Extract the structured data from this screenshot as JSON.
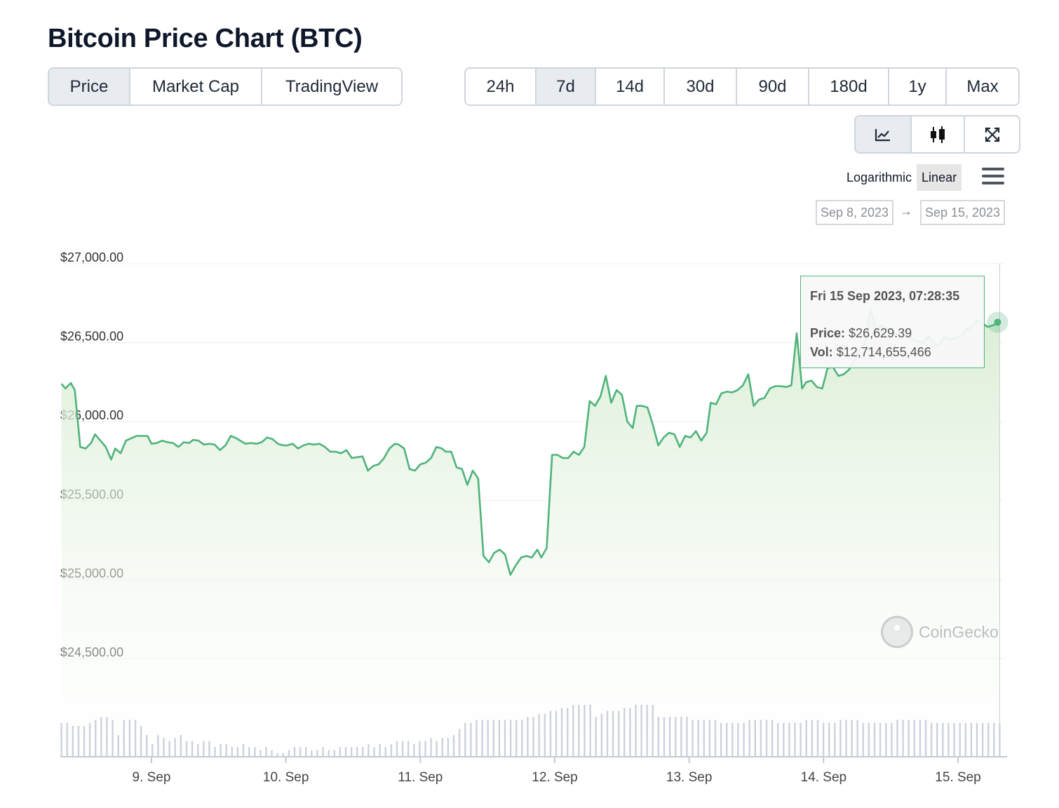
{
  "page": {
    "title": "Bitcoin Price Chart (BTC)"
  },
  "view_tabs": [
    {
      "label": "Price",
      "active": true
    },
    {
      "label": "Market Cap",
      "active": false
    },
    {
      "label": "TradingView",
      "active": false
    }
  ],
  "range_tabs": [
    {
      "label": "24h",
      "active": false
    },
    {
      "label": "7d",
      "active": true
    },
    {
      "label": "14d",
      "active": false
    },
    {
      "label": "30d",
      "active": false
    },
    {
      "label": "90d",
      "active": false
    },
    {
      "label": "180d",
      "active": false
    },
    {
      "label": "1y",
      "active": false
    },
    {
      "label": "Max",
      "active": false
    }
  ],
  "chart_type_tabs": [
    {
      "icon": "line-chart-icon",
      "active": true
    },
    {
      "icon": "candlestick-icon",
      "active": false
    },
    {
      "icon": "expand-icon",
      "active": false
    }
  ],
  "scale": {
    "log_label": "Logarithmic",
    "linear_label": "Linear",
    "active": "Linear",
    "menu_icon": "hamburger-menu-icon"
  },
  "date_range": {
    "from": "Sep 8, 2023",
    "arrow": "→",
    "to": "Sep 15, 2023"
  },
  "tooltip": {
    "header": "Fri 15 Sep 2023, 07:28:35",
    "price_label": "Price:",
    "price_value": "$26,629.39",
    "vol_label": "Vol:",
    "vol_value": "$12,714,655,466"
  },
  "watermark": {
    "text": "CoinGecko"
  },
  "colors": {
    "line": "#4fb37a",
    "area_top": "#d6ecd0",
    "volume": "#ccd1dd",
    "active_tab": "#e8ecf1"
  },
  "chart_data": {
    "type": "line",
    "title": "Bitcoin Price Chart (BTC)",
    "xlabel": "",
    "ylabel": "",
    "y_ticks": [
      "$24,500.00",
      "$25,000.00",
      "$25,500.00",
      "$26,000.00",
      "$26,500.00",
      "$27,000.00"
    ],
    "ylim": [
      24500,
      27000
    ],
    "x_ticks": [
      "9. Sep",
      "10. Sep",
      "11. Sep",
      "12. Sep",
      "13. Sep",
      "14. Sep",
      "15. Sep"
    ],
    "x_range_days": [
      8.33,
      15.33
    ],
    "grid": true,
    "series": [
      {
        "values": [
          [
            8.33,
            26240
          ],
          [
            8.36,
            26210
          ],
          [
            8.4,
            26245
          ],
          [
            8.43,
            26200
          ],
          [
            8.47,
            25840
          ],
          [
            8.51,
            25830
          ],
          [
            8.55,
            25865
          ],
          [
            8.58,
            25920
          ],
          [
            8.62,
            25880
          ],
          [
            8.66,
            25840
          ],
          [
            8.7,
            25760
          ],
          [
            8.73,
            25830
          ],
          [
            8.77,
            25800
          ],
          [
            8.81,
            25880
          ],
          [
            8.85,
            25895
          ],
          [
            8.89,
            25910
          ],
          [
            8.93,
            25910
          ],
          [
            8.97,
            25910
          ],
          [
            9.0,
            25860
          ],
          [
            9.04,
            25865
          ],
          [
            9.08,
            25880
          ],
          [
            9.12,
            25870
          ],
          [
            9.16,
            25865
          ],
          [
            9.2,
            25840
          ],
          [
            9.24,
            25870
          ],
          [
            9.28,
            25865
          ],
          [
            9.31,
            25885
          ],
          [
            9.35,
            25880
          ],
          [
            9.39,
            25855
          ],
          [
            9.43,
            25860
          ],
          [
            9.47,
            25855
          ],
          [
            9.51,
            25820
          ],
          [
            9.55,
            25850
          ],
          [
            9.59,
            25910
          ],
          [
            9.63,
            25895
          ],
          [
            9.66,
            25880
          ],
          [
            9.7,
            25860
          ],
          [
            9.74,
            25865
          ],
          [
            9.78,
            25860
          ],
          [
            9.82,
            25870
          ],
          [
            9.86,
            25900
          ],
          [
            9.9,
            25890
          ],
          [
            9.94,
            25860
          ],
          [
            9.98,
            25850
          ],
          [
            10.01,
            25850
          ],
          [
            10.05,
            25860
          ],
          [
            10.09,
            25830
          ],
          [
            10.13,
            25850
          ],
          [
            10.17,
            25860
          ],
          [
            10.21,
            25855
          ],
          [
            10.25,
            25860
          ],
          [
            10.29,
            25840
          ],
          [
            10.33,
            25810
          ],
          [
            10.37,
            25810
          ],
          [
            10.41,
            25800
          ],
          [
            10.45,
            25820
          ],
          [
            10.49,
            25770
          ],
          [
            10.53,
            25775
          ],
          [
            10.57,
            25780
          ],
          [
            10.61,
            25690
          ],
          [
            10.65,
            25720
          ],
          [
            10.69,
            25730
          ],
          [
            10.73,
            25770
          ],
          [
            10.77,
            25830
          ],
          [
            10.81,
            25860
          ],
          [
            10.84,
            25855
          ],
          [
            10.88,
            25830
          ],
          [
            10.92,
            25700
          ],
          [
            10.96,
            25690
          ],
          [
            11.0,
            25730
          ],
          [
            11.04,
            25740
          ],
          [
            11.08,
            25770
          ],
          [
            11.12,
            25840
          ],
          [
            11.16,
            25830
          ],
          [
            11.19,
            25810
          ],
          [
            11.23,
            25810
          ],
          [
            11.27,
            25710
          ],
          [
            11.31,
            25700
          ],
          [
            11.35,
            25600
          ],
          [
            11.39,
            25690
          ],
          [
            11.43,
            25640
          ],
          [
            11.47,
            25150
          ],
          [
            11.51,
            25110
          ],
          [
            11.55,
            25170
          ],
          [
            11.59,
            25190
          ],
          [
            11.63,
            25160
          ],
          [
            11.67,
            25030
          ],
          [
            11.71,
            25090
          ],
          [
            11.75,
            25140
          ],
          [
            11.79,
            25150
          ],
          [
            11.83,
            25140
          ],
          [
            11.87,
            25190
          ],
          [
            11.9,
            25140
          ],
          [
            11.94,
            25200
          ],
          [
            11.98,
            25790
          ],
          [
            12.02,
            25790
          ],
          [
            12.06,
            25770
          ],
          [
            12.1,
            25770
          ],
          [
            12.14,
            25810
          ],
          [
            12.18,
            25790
          ],
          [
            12.22,
            25840
          ],
          [
            12.26,
            26130
          ],
          [
            12.3,
            26100
          ],
          [
            12.34,
            26160
          ],
          [
            12.38,
            26290
          ],
          [
            12.42,
            26120
          ],
          [
            12.46,
            26200
          ],
          [
            12.5,
            26170
          ],
          [
            12.54,
            26000
          ],
          [
            12.58,
            25960
          ],
          [
            12.61,
            26100
          ],
          [
            12.65,
            26100
          ],
          [
            12.69,
            26090
          ],
          [
            12.73,
            25980
          ],
          [
            12.77,
            25850
          ],
          [
            12.81,
            25900
          ],
          [
            12.85,
            25930
          ],
          [
            12.89,
            25920
          ],
          [
            12.93,
            25840
          ],
          [
            12.97,
            25910
          ],
          [
            13.01,
            25900
          ],
          [
            13.05,
            25940
          ],
          [
            13.09,
            25880
          ],
          [
            13.13,
            25930
          ],
          [
            13.16,
            26120
          ],
          [
            13.2,
            26110
          ],
          [
            13.24,
            26180
          ],
          [
            13.28,
            26190
          ],
          [
            13.32,
            26185
          ],
          [
            13.36,
            26200
          ],
          [
            13.4,
            26230
          ],
          [
            13.44,
            26300
          ],
          [
            13.48,
            26100
          ],
          [
            13.52,
            26140
          ],
          [
            13.56,
            26150
          ],
          [
            13.6,
            26210
          ],
          [
            13.64,
            26225
          ],
          [
            13.68,
            26225
          ],
          [
            13.72,
            26220
          ],
          [
            13.76,
            26230
          ],
          [
            13.8,
            26560
          ],
          [
            13.84,
            26210
          ],
          [
            13.87,
            26250
          ],
          [
            13.91,
            26260
          ],
          [
            13.95,
            26220
          ],
          [
            13.99,
            26210
          ],
          [
            14.03,
            26340
          ],
          [
            14.07,
            26345
          ],
          [
            14.11,
            26290
          ],
          [
            14.15,
            26300
          ],
          [
            14.19,
            26330
          ],
          [
            14.23,
            26390
          ],
          [
            14.27,
            26460
          ],
          [
            14.31,
            26500
          ],
          [
            14.35,
            26710
          ],
          [
            14.39,
            26580
          ],
          [
            14.43,
            26610
          ],
          [
            14.47,
            26590
          ],
          [
            14.51,
            26580
          ],
          [
            14.55,
            26550
          ],
          [
            14.58,
            26570
          ],
          [
            14.62,
            26580
          ],
          [
            14.66,
            26520
          ],
          [
            14.7,
            26510
          ],
          [
            14.74,
            26500
          ],
          [
            14.78,
            26540
          ],
          [
            14.82,
            26500
          ],
          [
            14.86,
            26480
          ],
          [
            14.9,
            26540
          ],
          [
            14.94,
            26520
          ],
          [
            14.98,
            26530
          ],
          [
            15.02,
            26540
          ],
          [
            15.06,
            26580
          ],
          [
            15.1,
            26600
          ],
          [
            15.14,
            26640
          ],
          [
            15.18,
            26625
          ],
          [
            15.22,
            26600
          ],
          [
            15.26,
            26610
          ],
          [
            15.31,
            26629.39
          ]
        ],
        "volume": [
          11,
          11,
          10,
          10,
          10,
          11,
          12,
          13,
          13,
          12,
          7,
          12,
          12,
          12,
          10,
          7,
          4,
          7,
          6,
          5,
          6,
          7,
          5,
          5,
          4,
          5,
          5,
          3,
          4,
          4,
          3,
          3,
          4,
          3,
          3,
          2,
          3,
          2,
          1,
          1,
          2,
          3,
          3,
          3,
          2,
          2,
          3,
          2,
          2,
          3,
          3,
          3,
          3,
          3,
          4,
          3,
          4,
          3,
          4,
          5,
          5,
          5,
          4,
          5,
          5,
          6,
          5,
          6,
          6,
          7,
          9,
          11,
          11,
          12,
          12,
          12,
          12,
          12,
          12,
          12,
          12,
          12,
          13,
          13,
          14,
          14,
          15,
          15,
          16,
          16,
          17,
          17,
          17,
          17,
          13,
          14,
          15,
          15,
          15,
          16,
          16,
          17,
          17,
          17,
          17,
          13,
          13,
          13,
          13,
          13,
          13,
          12,
          12,
          12,
          12,
          12,
          11,
          11,
          11,
          11,
          11,
          12,
          12,
          12,
          12,
          12,
          11,
          11,
          11,
          11,
          11,
          12,
          12,
          12,
          11,
          11,
          11,
          12,
          12,
          12,
          12,
          11,
          11,
          11,
          11,
          11,
          11,
          12,
          12,
          12,
          12,
          12,
          12,
          11,
          11,
          11,
          11,
          11,
          11,
          11,
          11,
          11,
          11,
          11,
          11,
          11
        ]
      }
    ],
    "selected_point": {
      "x": 15.31,
      "y": 26629.39
    }
  }
}
